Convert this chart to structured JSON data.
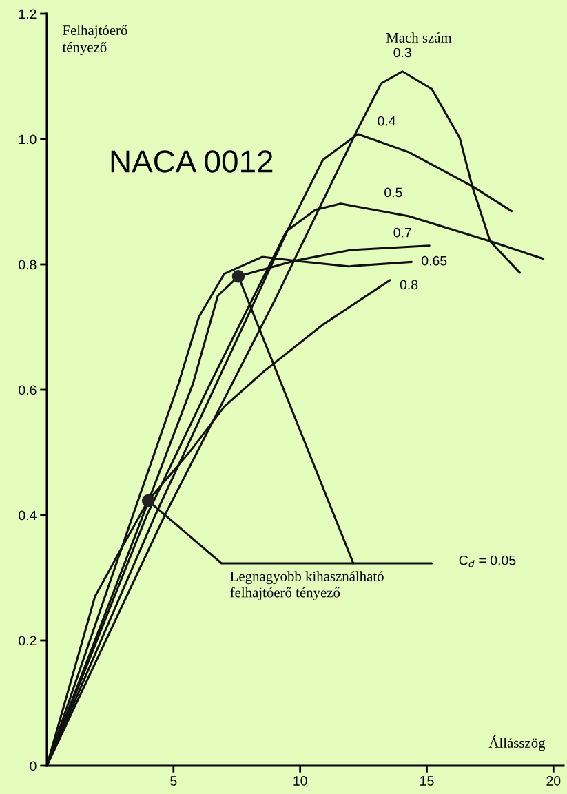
{
  "chart_data": {
    "type": "line",
    "title": "NACA 0012",
    "xlabel": "Állásszög",
    "ylabel": "Felhajtóerő\ntényező",
    "xlim": [
      0,
      20.4
    ],
    "ylim": [
      0,
      1.2
    ],
    "xticks": [
      5,
      10,
      15,
      20
    ],
    "yticks": [
      0,
      0.2,
      0.4,
      0.6,
      0.8,
      {
        "value": 1,
        "label": "1.0"
      },
      1.2
    ],
    "grid": false,
    "legend": false,
    "series": [
      {
        "name": "0.3",
        "color": "#111111",
        "x": [
          0,
          4.66,
          9.0,
          12.2,
          13.2,
          14.04,
          15.2,
          16.3,
          16.8,
          17.5,
          18.67
        ],
        "values": [
          0,
          0.4,
          0.743,
          1.01,
          1.089,
          1.108,
          1.08,
          1.002,
          0.924,
          0.837,
          0.787
        ]
      },
      {
        "name": "0.4",
        "color": "#111111",
        "x": [
          0,
          4.28,
          9.57,
          10.9,
          12.28,
          14.3,
          16.83,
          18.35
        ],
        "values": [
          0,
          0.4,
          0.86,
          0.967,
          1.008,
          0.979,
          0.924,
          0.885
        ]
      },
      {
        "name": "0.5",
        "color": "#111111",
        "x": [
          0,
          3.95,
          6.45,
          9.46,
          10.6,
          11.6,
          14.3,
          17.5,
          19.6
        ],
        "values": [
          0,
          0.4,
          0.61,
          0.853,
          0.887,
          0.897,
          0.877,
          0.837,
          0.809
        ]
      },
      {
        "name": "0.7",
        "color": "#111111",
        "x": [
          0,
          3.8,
          5.77,
          6.75,
          7.56,
          9.8,
          12.0,
          15.1
        ],
        "values": [
          0,
          0.4,
          0.61,
          0.75,
          0.781,
          0.806,
          0.823,
          0.83
        ]
      },
      {
        "name": "0.65",
        "color": "#111111",
        "x": [
          0,
          3.4,
          5.2,
          6.0,
          7.0,
          8.5,
          10.0,
          11.9,
          14.4
        ],
        "values": [
          0,
          0.4,
          0.61,
          0.716,
          0.785,
          0.812,
          0.805,
          0.797,
          0.804
        ]
      },
      {
        "name": "0.8",
        "color": "#111111",
        "x": [
          0,
          1.9,
          2.85,
          4.0,
          5.7,
          7.0,
          8.56,
          10.9,
          13.55
        ],
        "values": [
          0,
          0.27,
          0.34,
          0.423,
          0.504,
          0.573,
          0.629,
          0.704,
          0.775
        ]
      },
      {
        "name": "C$_{d}$ = 0.05",
        "color": "#111111",
        "x": [
          4.0,
          6.9,
          15.2
        ],
        "values": [
          0.423,
          0.323,
          0.323
        ]
      },
      {
        "color": "#111111",
        "x": [
          7.56,
          12.1
        ],
        "values": [
          0.781,
          0.323
        ]
      },
      {
        "type": "scatter",
        "marker": "circle",
        "color": "#222222",
        "x": [
          4.0,
          7.56
        ],
        "values": [
          0.423,
          0.781
        ]
      }
    ],
    "annotations": [
      "Mach szám",
      {
        "text": "Legnagyobb kihasználható\nfelhajtóerő tényező",
        "x": 7.0,
        "y": 0.323
      }
    ]
  }
}
